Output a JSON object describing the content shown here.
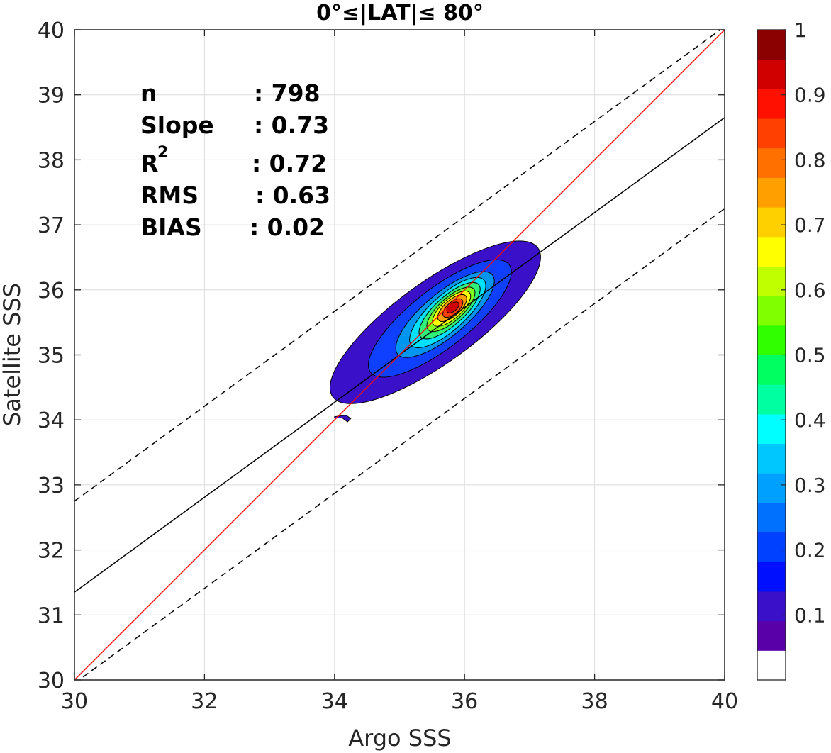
{
  "chart_data": {
    "type": "contour",
    "title": "0°≤|LAT|≤ 80°",
    "xlabel": "Argo SSS",
    "ylabel": "Satellite SSS",
    "xlim": [
      30,
      40
    ],
    "ylim": [
      30,
      40
    ],
    "x_ticks": [
      "30",
      "32",
      "34",
      "36",
      "38",
      "40"
    ],
    "y_ticks": [
      "30",
      "31",
      "32",
      "33",
      "34",
      "35",
      "36",
      "37",
      "38",
      "39",
      "40"
    ],
    "grid": true,
    "stats": [
      {
        "label": "n",
        "value": ": 798"
      },
      {
        "label": "Slope",
        "value": ": 0.73"
      },
      {
        "label": "R",
        "sup": "2",
        "value": ": 0.72"
      },
      {
        "label": "RMS",
        "value": ": 0.63"
      },
      {
        "label": "BIAS",
        "value": ": 0.02"
      }
    ],
    "reference_lines": {
      "one_to_one": {
        "x": [
          30,
          40
        ],
        "y": [
          30,
          40
        ],
        "color": "#ff0000"
      },
      "fit": {
        "x": [
          30,
          40
        ],
        "y": [
          31.35,
          38.65
        ],
        "color": "#000000"
      },
      "fit_upper": {
        "x": [
          30,
          40
        ],
        "y": [
          32.75,
          40.05
        ],
        "color": "#000000",
        "style": "dashed"
      },
      "fit_lower": {
        "x": [
          30,
          40
        ],
        "y": [
          29.95,
          37.25
        ],
        "color": "#000000",
        "style": "dashed"
      }
    },
    "density_peak": {
      "x": 35.82,
      "y": 35.72
    },
    "contour_levels": [
      {
        "level": 0.05,
        "color": "#3a10c8",
        "cx": 35.55,
        "cy": 35.5,
        "rx": 1.95,
        "ry": 0.62,
        "angle_deg": 36
      },
      {
        "level": 0.15,
        "color": "#1040ff",
        "cx": 35.62,
        "cy": 35.56,
        "rx": 1.35,
        "ry": 0.45,
        "angle_deg": 38
      },
      {
        "level": 0.25,
        "color": "#0096f0",
        "cx": 35.7,
        "cy": 35.62,
        "rx": 0.95,
        "ry": 0.33,
        "angle_deg": 40
      },
      {
        "level": 0.35,
        "color": "#00e0ff",
        "cx": 35.74,
        "cy": 35.65,
        "rx": 0.75,
        "ry": 0.27,
        "angle_deg": 42
      },
      {
        "level": 0.45,
        "color": "#30f07a",
        "cx": 35.77,
        "cy": 35.68,
        "rx": 0.6,
        "ry": 0.22,
        "angle_deg": 42
      },
      {
        "level": 0.55,
        "color": "#80ff20",
        "cx": 35.79,
        "cy": 35.7,
        "rx": 0.47,
        "ry": 0.18,
        "angle_deg": 42
      },
      {
        "level": 0.65,
        "color": "#ffff00",
        "cx": 35.8,
        "cy": 35.71,
        "rx": 0.37,
        "ry": 0.15,
        "angle_deg": 42
      },
      {
        "level": 0.75,
        "color": "#ffa000",
        "cx": 35.81,
        "cy": 35.72,
        "rx": 0.28,
        "ry": 0.12,
        "angle_deg": 42
      },
      {
        "level": 0.85,
        "color": "#ff4000",
        "cx": 35.82,
        "cy": 35.72,
        "rx": 0.19,
        "ry": 0.09,
        "angle_deg": 42
      },
      {
        "level": 0.95,
        "color": "#d00000",
        "cx": 35.82,
        "cy": 35.73,
        "rx": 0.11,
        "ry": 0.06,
        "angle_deg": 40
      }
    ],
    "outlier_patch": {
      "level": 0.05,
      "color": "#3a10c8",
      "points": [
        [
          34.0,
          34.05
        ],
        [
          34.18,
          34.07
        ],
        [
          34.25,
          34.02
        ],
        [
          34.2,
          33.97
        ],
        [
          34.12,
          34.03
        ],
        [
          34.0,
          34.03
        ]
      ]
    },
    "colorbar": {
      "ticks": [
        "0.1",
        "0.2",
        "0.3",
        "0.4",
        "0.5",
        "0.6",
        "0.7",
        "0.8",
        "0.9",
        "1"
      ],
      "tick_values": [
        0.1,
        0.2,
        0.3,
        0.4,
        0.5,
        0.6,
        0.7,
        0.8,
        0.9,
        1.0
      ],
      "colors": [
        "#ffffff",
        "#5a00a8",
        "#3a10c8",
        "#0010ff",
        "#0040ff",
        "#0070ff",
        "#00a0ff",
        "#00c8ff",
        "#00ffff",
        "#00ffa0",
        "#00ff60",
        "#30ff00",
        "#80ff00",
        "#c0ff00",
        "#ffff00",
        "#ffd000",
        "#ffa000",
        "#ff7000",
        "#ff4000",
        "#ff1000",
        "#d00000",
        "#8b0000"
      ]
    }
  }
}
